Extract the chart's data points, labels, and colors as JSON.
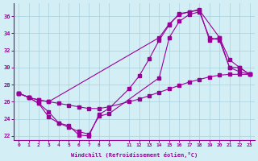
{
  "xlabel": "Windchill (Refroidissement éolien,°C)",
  "background_color": "#d4eef5",
  "grid_color": "#a8d0dc",
  "line_color": "#990099",
  "xlim": [
    -0.5,
    23.5
  ],
  "ylim": [
    21.5,
    37.5
  ],
  "xticks": [
    0,
    1,
    2,
    3,
    4,
    5,
    6,
    7,
    8,
    9,
    11,
    12,
    13,
    14,
    15,
    16,
    17,
    18,
    19,
    20,
    21,
    22,
    23
  ],
  "yticks": [
    22,
    24,
    26,
    28,
    30,
    32,
    34,
    36
  ],
  "line1_x": [
    0,
    1,
    2,
    3,
    4,
    5,
    6,
    7,
    8,
    9,
    11,
    12,
    13,
    14,
    15,
    16,
    17,
    18,
    19,
    20,
    21,
    22,
    23
  ],
  "line1_y": [
    27.0,
    26.5,
    26.2,
    26.0,
    25.8,
    25.6,
    25.4,
    25.2,
    25.2,
    25.4,
    26.0,
    26.3,
    26.7,
    27.1,
    27.5,
    27.9,
    28.3,
    28.6,
    28.9,
    29.1,
    29.2,
    29.2,
    29.2
  ],
  "line2_x": [
    0,
    1,
    2,
    3,
    14,
    15,
    16,
    17,
    18,
    19,
    20,
    21,
    22,
    23
  ],
  "line2_y": [
    27.0,
    26.5,
    26.2,
    26.0,
    33.5,
    35.1,
    36.2,
    36.5,
    36.8,
    33.2,
    33.5,
    30.0,
    29.5,
    29.2
  ],
  "line3_x": [
    0,
    1,
    2,
    3,
    4,
    5,
    6,
    7,
    8,
    9,
    14,
    15,
    16,
    17,
    18,
    19,
    20,
    21,
    22,
    23
  ],
  "line3_y": [
    27.0,
    26.5,
    25.8,
    24.8,
    23.5,
    23.0,
    22.5,
    22.2,
    24.3,
    24.6,
    28.8,
    33.5,
    35.4,
    36.2,
    36.5,
    33.5,
    33.2,
    30.0,
    30.0,
    29.2
  ],
  "line4_x": [
    0,
    1,
    2,
    3,
    4,
    5,
    6,
    7,
    8,
    9,
    11,
    12,
    13,
    14,
    15,
    16,
    17,
    18,
    20,
    21,
    22,
    23
  ],
  "line4_y": [
    27.0,
    26.5,
    25.8,
    24.2,
    23.5,
    23.2,
    22.1,
    22.0,
    24.5,
    25.2,
    27.5,
    29.0,
    31.0,
    33.2,
    35.0,
    36.3,
    36.5,
    36.7,
    33.5,
    30.9,
    30.0,
    29.2
  ]
}
